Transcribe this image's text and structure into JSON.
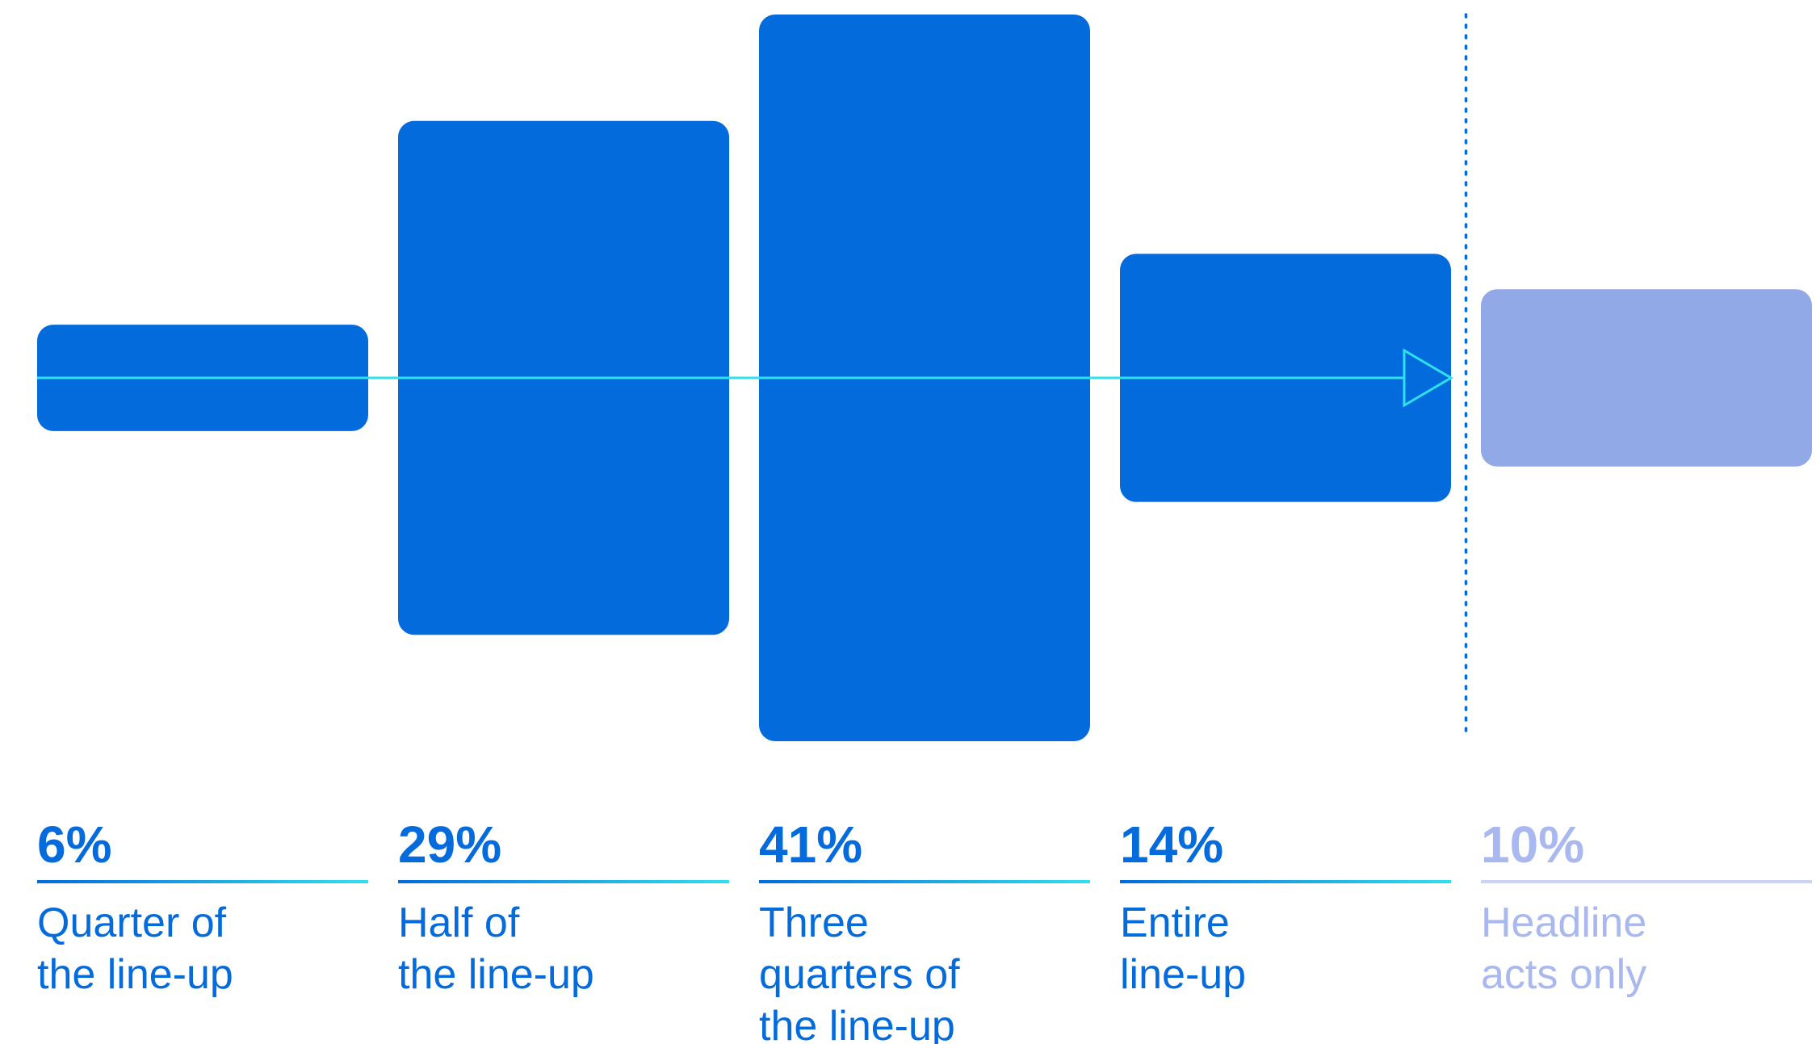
{
  "chart_data": {
    "type": "bar",
    "categories": [
      [
        "Quarter of",
        "the line-up"
      ],
      [
        "Half of",
        "the line-up"
      ],
      [
        "Three",
        "quarters of",
        "the line-up"
      ],
      [
        "Entire",
        "line-up"
      ],
      [
        "Headline",
        "acts only"
      ]
    ],
    "values": [
      6,
      29,
      41,
      14,
      10
    ],
    "value_labels": [
      "6%",
      "29%",
      "41%",
      "14%",
      "10%"
    ],
    "value_unit": "%",
    "highlighted": [
      true,
      true,
      true,
      true,
      false
    ],
    "arrow_spans_categories": [
      0,
      3
    ],
    "divider_before_category": 4,
    "colors": {
      "bar": "#046BDC",
      "bar_muted": "#92A9E8",
      "arrow": "#2FE0F0",
      "text": "#046BDC",
      "text_muted": "#A9B8EE",
      "divider": "#046BDC",
      "underline_start": "#046BDC",
      "underline_end": "#2FE0F0",
      "underline_muted": "#C9D3F3"
    }
  }
}
